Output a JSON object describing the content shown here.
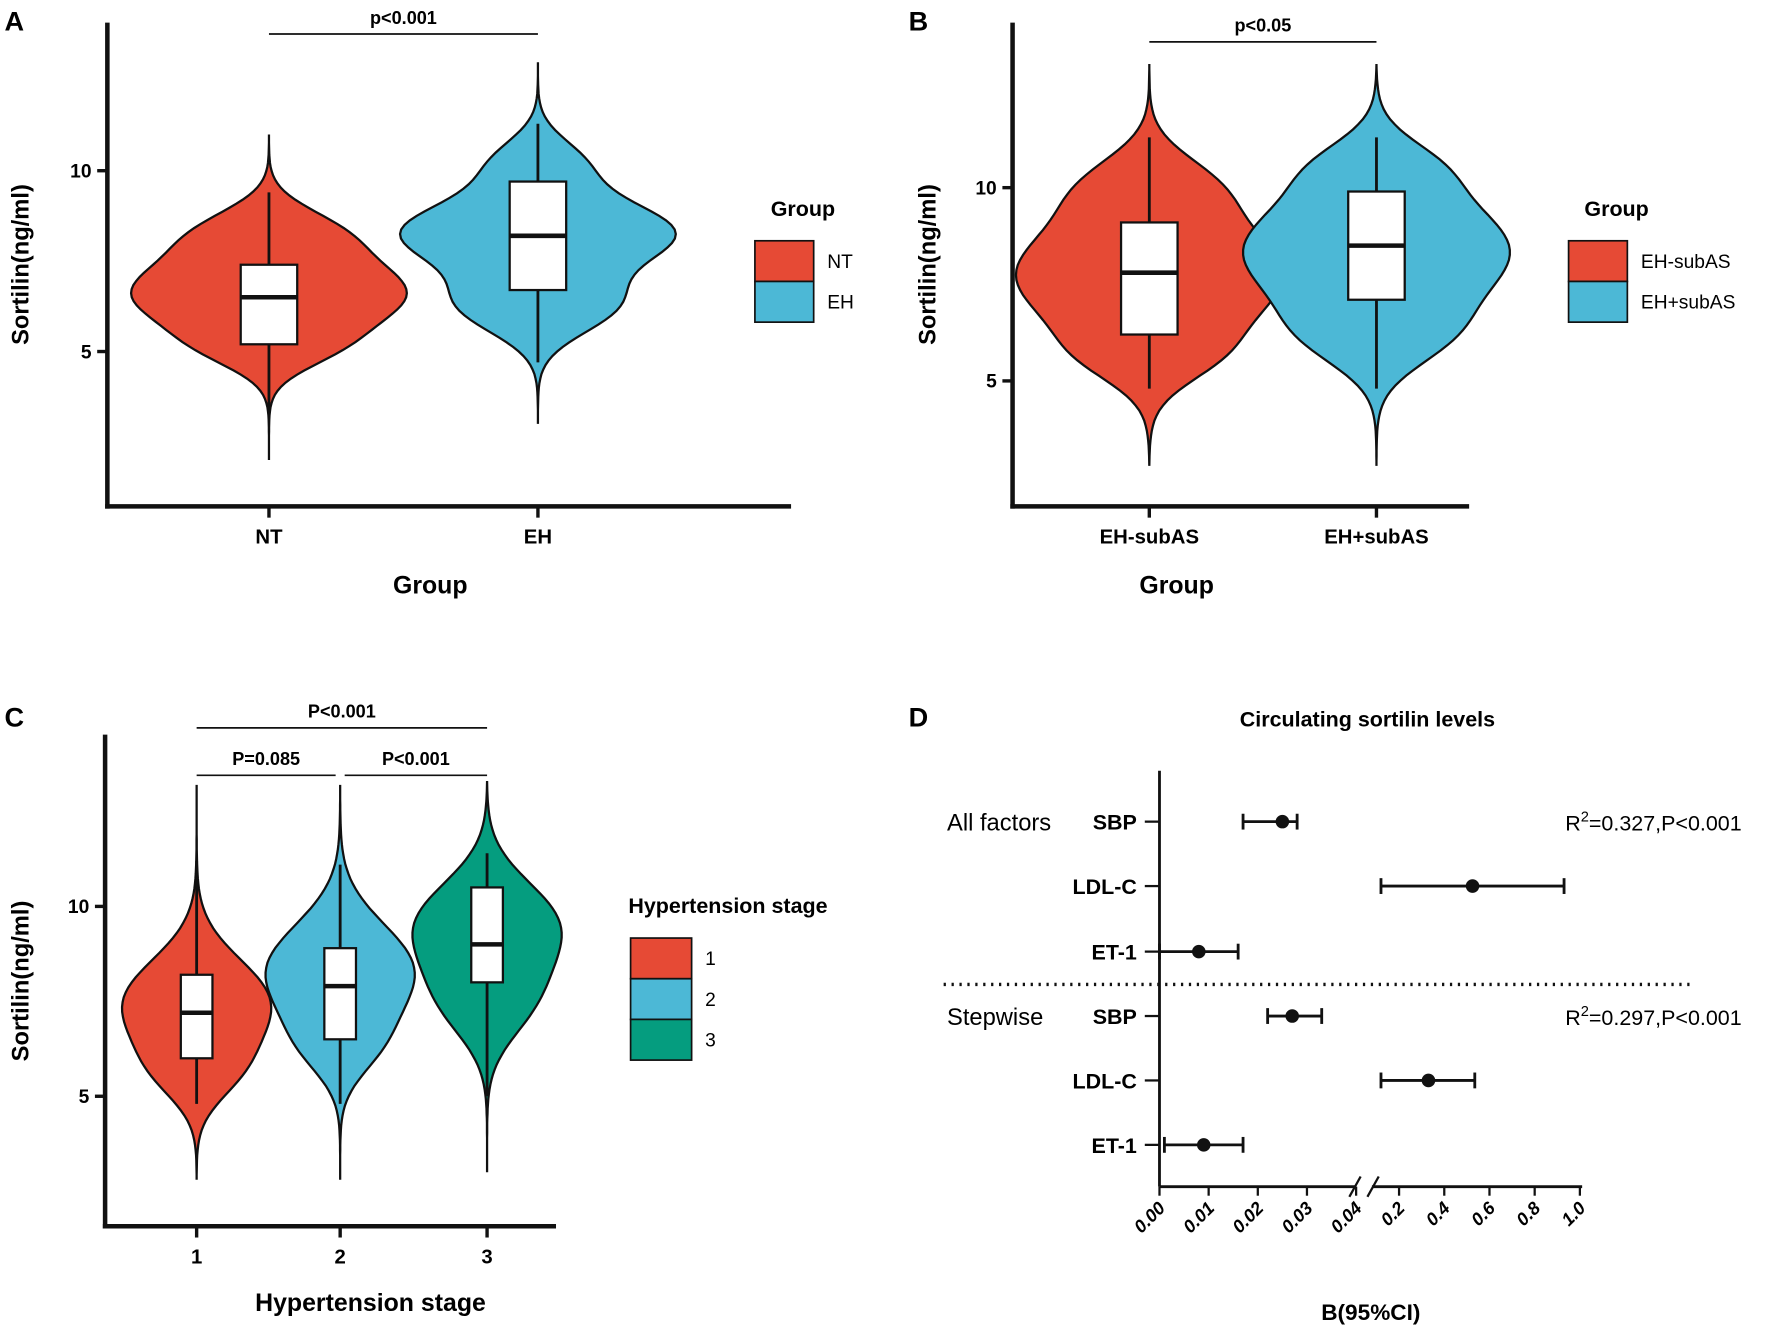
{
  "colors": {
    "red": "#e64a35",
    "blue": "#4cb8d6",
    "green": "#059d7f",
    "stroke": "#111111"
  },
  "chart_data": [
    {
      "panel": "A",
      "type": "violin",
      "ylabel": "Sortilin(ng/ml)",
      "xlabel": "Group",
      "yticks": [
        5,
        10
      ],
      "ylim": [
        0.7,
        14.1
      ],
      "categories": [
        "NT",
        "EH"
      ],
      "legend": {
        "title": "Group",
        "entries": [
          "NT",
          "EH"
        ],
        "placement": "right"
      },
      "groups": [
        {
          "name": "NT",
          "color": "red",
          "range": [
            2.0,
            11.0
          ],
          "box": {
            "q1": 5.2,
            "median": 6.5,
            "q3": 7.4,
            "min": 3.3,
            "max": 9.4
          },
          "modes": [
            [
              6.6,
              1,
              1.0
            ],
            [
              8.4,
              0.45,
              0.7
            ],
            [
              5.0,
              0.3,
              0.6
            ]
          ]
        },
        {
          "name": "EH",
          "color": "blue",
          "range": [
            3.0,
            13.0
          ],
          "box": {
            "q1": 6.7,
            "median": 8.2,
            "q3": 9.7,
            "min": 4.7,
            "max": 11.3
          },
          "modes": [
            [
              8.3,
              1,
              0.9
            ],
            [
              6.2,
              0.6,
              0.8
            ],
            [
              10.3,
              0.35,
              0.7
            ]
          ]
        }
      ],
      "annotations": [
        {
          "text": "p<0.001",
          "from": 0,
          "to": 1,
          "level": 0
        }
      ]
    },
    {
      "panel": "B",
      "type": "violin",
      "ylabel": "Sortilin(ng/ml)",
      "xlabel": "Group",
      "yticks": [
        5,
        10
      ],
      "ylim": [
        1.4,
        14.2
      ],
      "categories": [
        "EH-subAS",
        "EH+subAS"
      ],
      "legend": {
        "title": "Group",
        "entries": [
          "EH-subAS",
          "EH+subAS"
        ],
        "placement": "right"
      },
      "groups": [
        {
          "name": "EH-subAS",
          "color": "red",
          "range": [
            2.8,
            13.2
          ],
          "box": {
            "q1": 6.2,
            "median": 7.8,
            "q3": 9.1,
            "min": 4.8,
            "max": 11.3
          },
          "modes": [
            [
              7.7,
              1,
              1.5
            ],
            [
              10.2,
              0.35,
              0.8
            ],
            [
              5.5,
              0.3,
              0.7
            ]
          ]
        },
        {
          "name": "EH+subAS",
          "color": "blue",
          "range": [
            2.8,
            13.2
          ],
          "box": {
            "q1": 7.1,
            "median": 8.5,
            "q3": 9.9,
            "min": 4.8,
            "max": 11.3
          },
          "modes": [
            [
              8.4,
              1,
              1.5
            ],
            [
              10.7,
              0.3,
              0.7
            ],
            [
              6.0,
              0.35,
              0.8
            ]
          ]
        }
      ],
      "annotations": [
        {
          "text": "p<0.05",
          "from": 0,
          "to": 1,
          "level": 0
        }
      ]
    },
    {
      "panel": "C",
      "type": "violin",
      "ylabel": "Sortilin(ng/ml)",
      "xlabel": "Hypertension stage",
      "yticks": [
        5,
        10
      ],
      "ylim": [
        1.6,
        14.5
      ],
      "categories": [
        "1",
        "2",
        "3"
      ],
      "legend": {
        "title": "Hypertension stage",
        "entries": [
          "1",
          "2",
          "3"
        ],
        "placement": "right"
      },
      "groups": [
        {
          "name": "1",
          "color": "red",
          "range": [
            2.8,
            13.2
          ],
          "box": {
            "q1": 6.0,
            "median": 7.2,
            "q3": 8.2,
            "min": 4.8,
            "max": 11.2
          },
          "modes": [
            [
              7.4,
              1,
              1.2
            ],
            [
              5.5,
              0.45,
              0.8
            ]
          ]
        },
        {
          "name": "2",
          "color": "blue",
          "range": [
            2.8,
            13.2
          ],
          "box": {
            "q1": 6.5,
            "median": 7.9,
            "q3": 8.9,
            "min": 4.8,
            "max": 11.1
          },
          "modes": [
            [
              8.3,
              1,
              1.3
            ],
            [
              6.2,
              0.35,
              0.8
            ]
          ]
        },
        {
          "name": "3",
          "color": "green",
          "range": [
            3.0,
            13.3
          ],
          "box": {
            "q1": 8.0,
            "median": 9.0,
            "q3": 10.5,
            "min": 5.0,
            "max": 11.4
          },
          "modes": [
            [
              9.6,
              1,
              1.2
            ],
            [
              7.4,
              0.5,
              1.0
            ]
          ]
        }
      ],
      "annotations": [
        {
          "text": "P=0.085",
          "from": 0,
          "to": 1,
          "level": 0
        },
        {
          "text": "P<0.001",
          "from": 1,
          "to": 2,
          "level": 0
        },
        {
          "text": "P<0.001",
          "from": 0,
          "to": 2,
          "level": 1
        }
      ]
    },
    {
      "panel": "D",
      "type": "forest",
      "title": "Circulating sortilin levels",
      "xlabel": "B(95%CI)",
      "xticks_low": [
        "0.00",
        "0.01",
        "0.02",
        "0.03",
        "0.04"
      ],
      "xticks_high": [
        "0.2",
        "0.4",
        "0.6",
        "0.8",
        "1.0"
      ],
      "axis_break": [
        0.04,
        0.1
      ],
      "blocks": [
        {
          "label": "All factors",
          "r2_text": "=0.327,P<0.001",
          "r2_prefix": "R",
          "r2_sup": "2",
          "rows": [
            {
              "name": "SBP",
              "estimate": 0.025,
              "lo": 0.017,
              "hi": 0.028
            },
            {
              "name": "LDL-C",
              "estimate": 0.525,
              "lo": 0.12,
              "hi": 0.93
            },
            {
              "name": "ET-1",
              "estimate": 0.008,
              "lo": 0.0,
              "hi": 0.016
            }
          ]
        },
        {
          "label": "Stepwise",
          "r2_text": "=0.297,P<0.001",
          "r2_prefix": "R",
          "r2_sup": "2",
          "rows": [
            {
              "name": "SBP",
              "estimate": 0.027,
              "lo": 0.022,
              "hi": 0.033
            },
            {
              "name": "LDL-C",
              "estimate": 0.33,
              "lo": 0.12,
              "hi": 0.535
            },
            {
              "name": "ET-1",
              "estimate": 0.009,
              "lo": 0.001,
              "hi": 0.017
            }
          ]
        }
      ]
    }
  ],
  "panel_labels": [
    "A",
    "B",
    "C",
    "D"
  ]
}
